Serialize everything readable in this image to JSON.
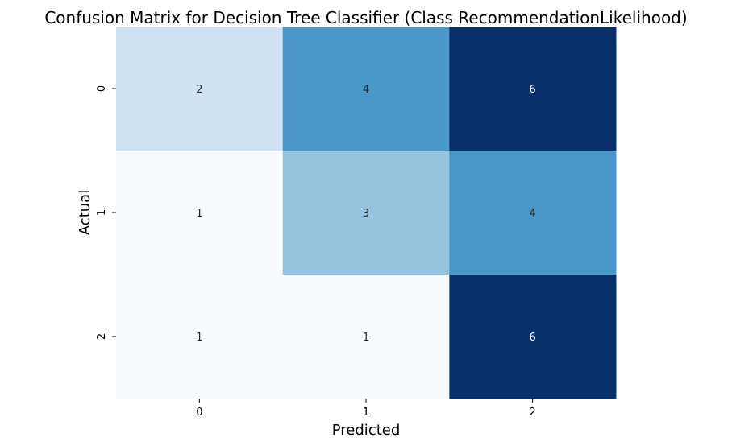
{
  "chart_data": {
    "type": "heatmap",
    "title": "Confusion Matrix for Decision Tree Classifier (Class RecommendationLikelihood)",
    "xlabel": "Predicted",
    "ylabel": "Actual",
    "x_categories": [
      "0",
      "1",
      "2"
    ],
    "y_categories": [
      "0",
      "1",
      "2"
    ],
    "values": [
      [
        2,
        4,
        6
      ],
      [
        1,
        3,
        4
      ],
      [
        1,
        1,
        6
      ]
    ],
    "colormap": "Blues",
    "colors": {
      "low": "#f7fbff",
      "high": "#08306b",
      "text_dark": "#262626",
      "text_light": "#ffffff"
    },
    "colorbar": false,
    "grid": false
  }
}
